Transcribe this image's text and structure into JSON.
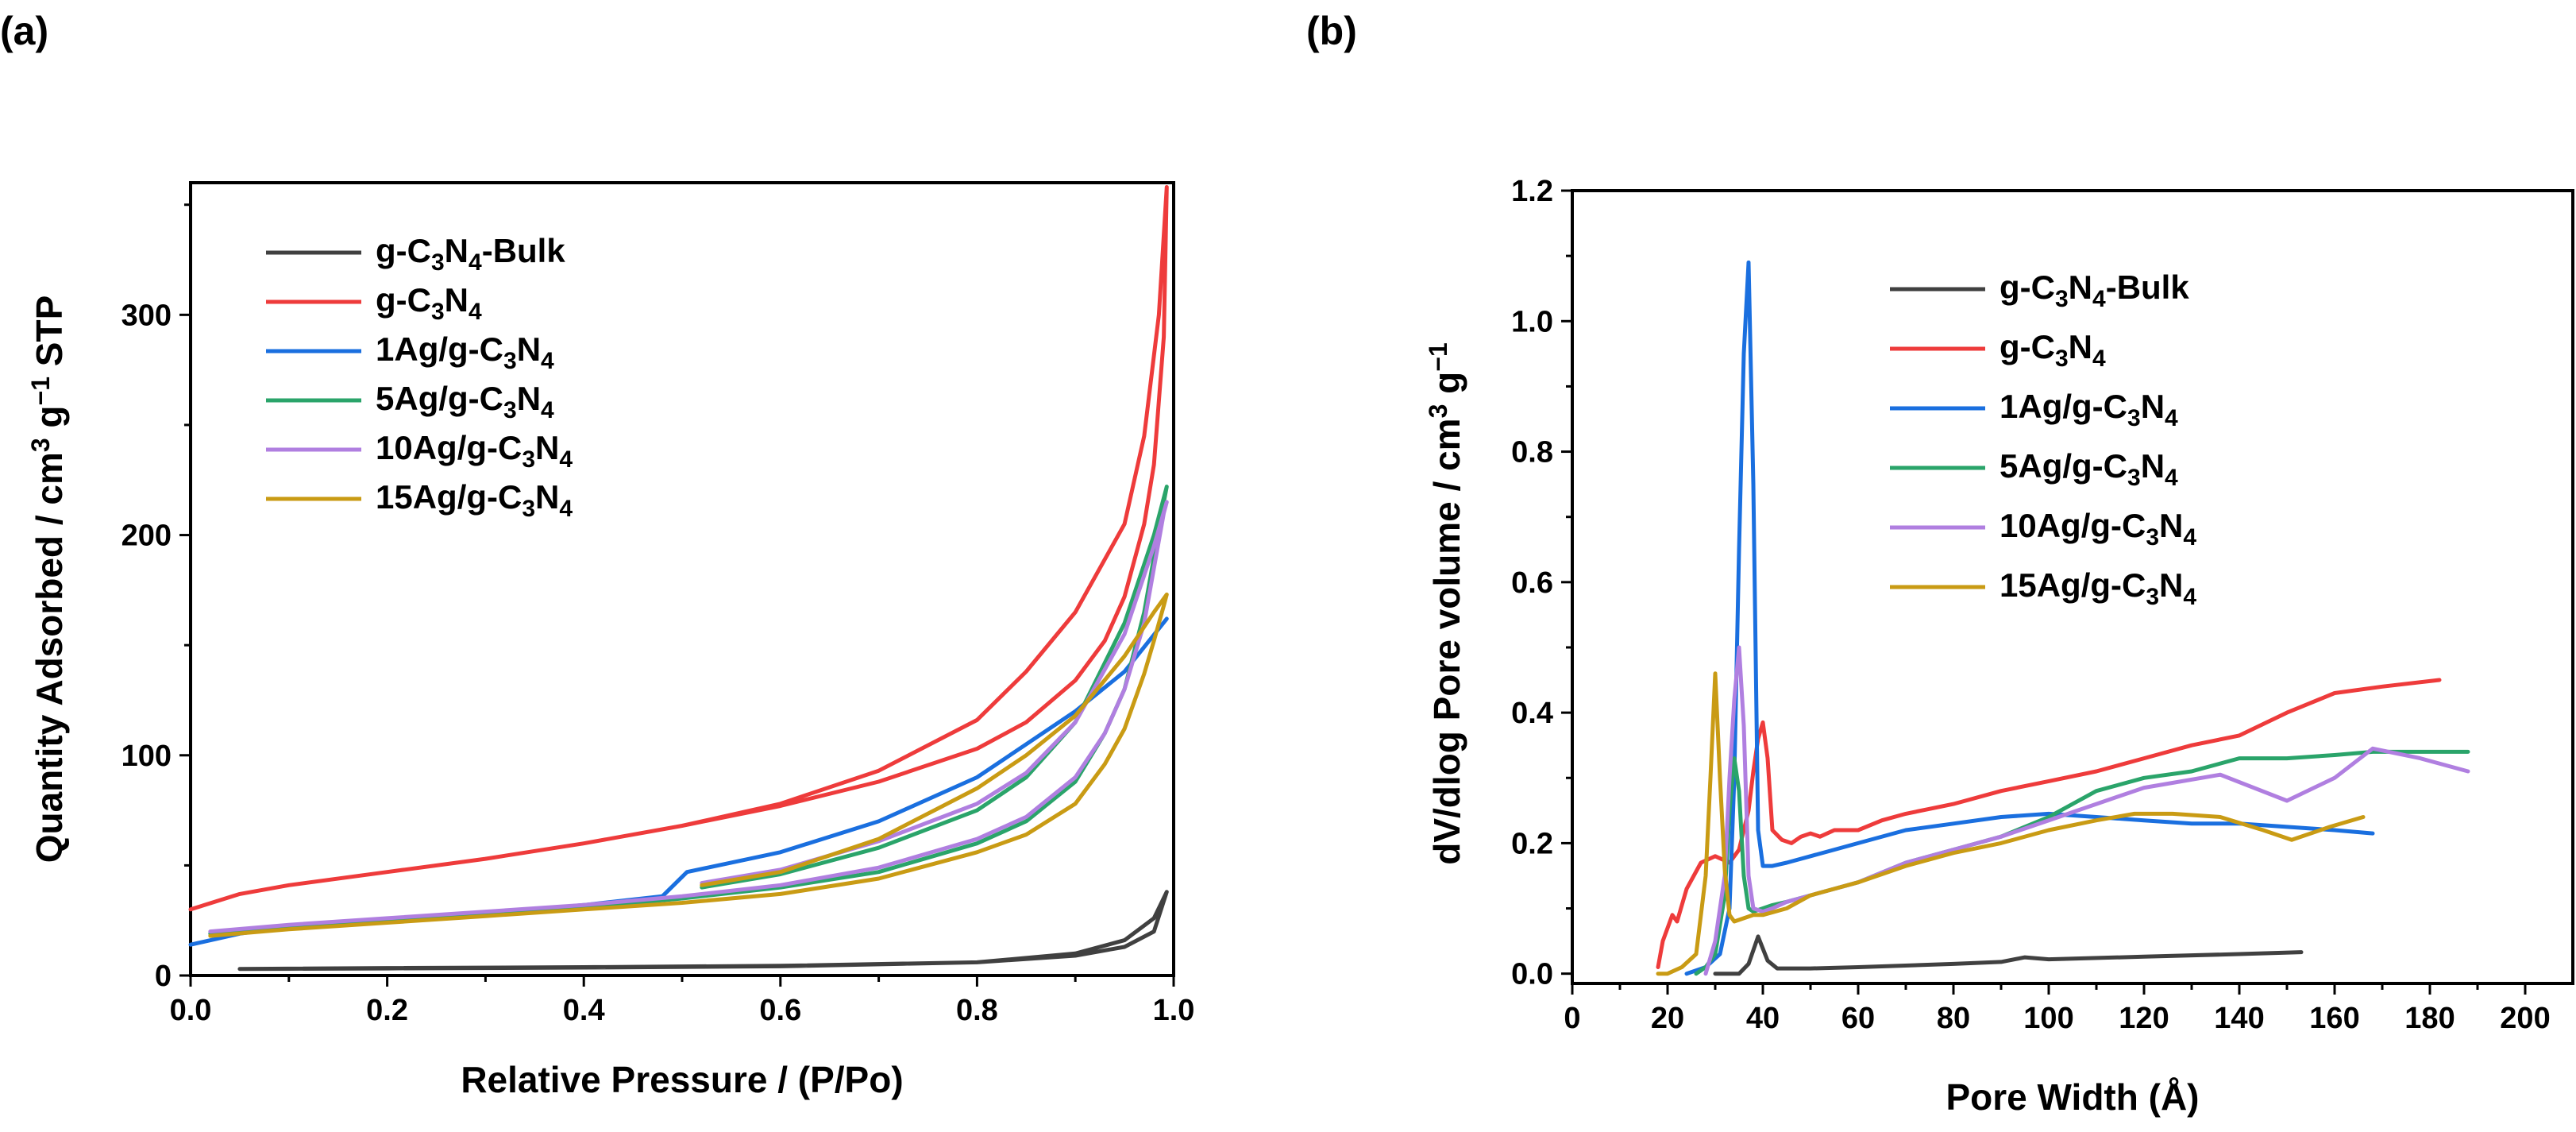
{
  "figure": {
    "panels": [
      "(a)",
      "(b)"
    ]
  },
  "colors": {
    "g-C3N4-Bulk": "#404040",
    "g-C3N4": "#ee3b3b",
    "1Ag/g-C3N4": "#1a6fdf",
    "5Ag/g-C3N4": "#2aa46a",
    "10Ag/g-C3N4": "#b07fe0",
    "15Ag/g-C3N4": "#c99b14"
  },
  "chart_data": [
    {
      "panel": "(a)",
      "type": "line",
      "title": "",
      "xlabel": "Relative Pressure / (P/Po)",
      "ylabel": {
        "pre": "Quantity Adsorbed / cm",
        "sup1": "3",
        "mid": " g",
        "sup2": "−1",
        "post": " STP"
      },
      "xlim": [
        0.0,
        1.0
      ],
      "ylim": [
        0,
        360
      ],
      "xticks": [
        0.0,
        0.2,
        0.4,
        0.6,
        0.8,
        1.0
      ],
      "xtick_labels": [
        "0.0",
        "0.2",
        "0.4",
        "0.6",
        "0.8",
        "1.0"
      ],
      "yticks": [
        0,
        100,
        200,
        300
      ],
      "ytick_labels": [
        "0",
        "100",
        "200",
        "300"
      ],
      "legend_position": "top-left",
      "series": [
        {
          "key": "g-C3N4-Bulk",
          "label": {
            "parts": [
              [
                "t",
                "g-C"
              ],
              [
                "sub",
                "3"
              ],
              [
                "t",
                "N"
              ],
              [
                "sub",
                "4"
              ],
              [
                "t",
                "-Bulk"
              ]
            ]
          },
          "x": [
            0.05,
            0.2,
            0.4,
            0.6,
            0.8,
            0.9,
            0.95,
            0.98,
            0.993,
            0.98,
            0.95,
            0.9,
            0.8,
            0.6,
            0.4,
            0.2,
            0.05
          ],
          "y": [
            3,
            3.2,
            3.6,
            4.2,
            6,
            10,
            16,
            26,
            38,
            20,
            13,
            9,
            6,
            4.4,
            3.8,
            3.4,
            3
          ]
        },
        {
          "key": "g-C3N4",
          "label": {
            "parts": [
              [
                "t",
                "g-C"
              ],
              [
                "sub",
                "3"
              ],
              [
                "t",
                "N"
              ],
              [
                "sub",
                "4"
              ]
            ]
          },
          "x": [
            0.0,
            0.05,
            0.1,
            0.2,
            0.3,
            0.4,
            0.5,
            0.6,
            0.7,
            0.8,
            0.85,
            0.9,
            0.93,
            0.95,
            0.97,
            0.98,
            0.99,
            0.993,
            0.985,
            0.97,
            0.95,
            0.9,
            0.85,
            0.8,
            0.7,
            0.6,
            0.5
          ],
          "y": [
            30,
            37,
            41,
            47,
            53,
            60,
            68,
            77,
            88,
            103,
            115,
            134,
            152,
            172,
            205,
            232,
            290,
            358,
            300,
            245,
            205,
            165,
            138,
            116,
            93,
            78,
            68
          ]
        },
        {
          "key": "1Ag/g-C3N4",
          "label": {
            "parts": [
              [
                "t",
                "1Ag/g-C"
              ],
              [
                "sub",
                "3"
              ],
              [
                "t",
                "N"
              ],
              [
                "sub",
                "4"
              ]
            ]
          },
          "x": [
            0.0,
            0.05,
            0.1,
            0.2,
            0.3,
            0.4,
            0.48,
            0.505,
            0.6,
            0.7,
            0.8,
            0.9,
            0.95,
            0.993
          ],
          "y": [
            14,
            19,
            22,
            25,
            28,
            32,
            36,
            47,
            56,
            70,
            90,
            120,
            138,
            162
          ]
        },
        {
          "key": "5Ag/g-C3N4",
          "label": {
            "parts": [
              [
                "t",
                "5Ag/g-C"
              ],
              [
                "sub",
                "3"
              ],
              [
                "t",
                "N"
              ],
              [
                "sub",
                "4"
              ]
            ]
          },
          "x": [
            0.02,
            0.1,
            0.2,
            0.3,
            0.4,
            0.5,
            0.6,
            0.7,
            0.8,
            0.85,
            0.9,
            0.93,
            0.95,
            0.97,
            0.98,
            0.99,
            0.993,
            0.98,
            0.95,
            0.9,
            0.85,
            0.8,
            0.7,
            0.6,
            0.52
          ],
          "y": [
            19,
            22,
            25,
            28,
            31,
            35,
            40,
            47,
            60,
            70,
            88,
            110,
            130,
            165,
            190,
            215,
            222,
            200,
            160,
            115,
            90,
            75,
            58,
            46,
            40
          ]
        },
        {
          "key": "10Ag/g-C3N4",
          "label": {
            "parts": [
              [
                "t",
                "10Ag/g-C"
              ],
              [
                "sub",
                "3"
              ],
              [
                "t",
                "N"
              ],
              [
                "sub",
                "4"
              ]
            ]
          },
          "x": [
            0.02,
            0.1,
            0.2,
            0.3,
            0.4,
            0.5,
            0.6,
            0.7,
            0.8,
            0.85,
            0.9,
            0.93,
            0.95,
            0.97,
            0.98,
            0.99,
            0.993,
            0.98,
            0.95,
            0.9,
            0.85,
            0.8,
            0.7,
            0.6,
            0.52
          ],
          "y": [
            20,
            23,
            26,
            29,
            32,
            36,
            41,
            49,
            62,
            72,
            90,
            110,
            130,
            160,
            185,
            210,
            215,
            195,
            155,
            115,
            92,
            78,
            61,
            48,
            42
          ]
        },
        {
          "key": "15Ag/g-C3N4",
          "label": {
            "parts": [
              [
                "t",
                "15Ag/g-C"
              ],
              [
                "sub",
                "3"
              ],
              [
                "t",
                "N"
              ],
              [
                "sub",
                "4"
              ]
            ]
          },
          "x": [
            0.02,
            0.1,
            0.2,
            0.3,
            0.4,
            0.5,
            0.6,
            0.7,
            0.8,
            0.85,
            0.9,
            0.93,
            0.95,
            0.97,
            0.98,
            0.99,
            0.993,
            0.98,
            0.95,
            0.9,
            0.85,
            0.8,
            0.7,
            0.6,
            0.52
          ],
          "y": [
            18,
            21,
            24,
            27,
            30,
            33,
            37,
            44,
            56,
            64,
            78,
            96,
            112,
            137,
            152,
            168,
            173,
            165,
            145,
            118,
            100,
            85,
            62,
            47,
            41
          ]
        }
      ]
    },
    {
      "panel": "(b)",
      "type": "line",
      "title": "",
      "xlabel": "Pore Width (Å)",
      "ylabel": {
        "pre": "dV/dlog Pore volume / cm",
        "sup1": "3",
        "mid": " g",
        "sup2": "−1",
        "post": ""
      },
      "xlim": [
        0,
        210
      ],
      "ylim": [
        -0.015,
        1.2
      ],
      "xticks": [
        0,
        20,
        40,
        60,
        80,
        100,
        120,
        140,
        160,
        180,
        200
      ],
      "xtick_labels": [
        "0",
        "20",
        "40",
        "60",
        "80",
        "100",
        "120",
        "140",
        "160",
        "180",
        "200"
      ],
      "yticks": [
        0.0,
        0.2,
        0.4,
        0.6,
        0.8,
        1.0,
        1.2
      ],
      "ytick_labels": [
        "0.0",
        "0.2",
        "0.4",
        "0.6",
        "0.8",
        "1.0",
        "1.2"
      ],
      "legend_position": "top-center",
      "series": [
        {
          "key": "g-C3N4-Bulk",
          "label": {
            "parts": [
              [
                "t",
                "g-C"
              ],
              [
                "sub",
                "3"
              ],
              [
                "t",
                "N"
              ],
              [
                "sub",
                "4"
              ],
              [
                "t",
                "-Bulk"
              ]
            ]
          },
          "x": [
            30,
            35,
            37,
            39,
            41,
            43,
            50,
            60,
            80,
            90,
            95,
            100,
            120,
            140,
            153
          ],
          "y": [
            0.0,
            0.0,
            0.015,
            0.057,
            0.02,
            0.008,
            0.008,
            0.01,
            0.015,
            0.018,
            0.025,
            0.022,
            0.026,
            0.03,
            0.033
          ]
        },
        {
          "key": "g-C3N4",
          "label": {
            "parts": [
              [
                "t",
                "g-C"
              ],
              [
                "sub",
                "3"
              ],
              [
                "t",
                "N"
              ],
              [
                "sub",
                "4"
              ]
            ]
          },
          "x": [
            18,
            19,
            21,
            22,
            24,
            27,
            30,
            33,
            35,
            37,
            38,
            39,
            40,
            41,
            42,
            44,
            46,
            48,
            50,
            52,
            55,
            60,
            65,
            70,
            80,
            90,
            100,
            110,
            120,
            130,
            140,
            150,
            160,
            170,
            182
          ],
          "y": [
            0.01,
            0.05,
            0.09,
            0.08,
            0.13,
            0.17,
            0.18,
            0.17,
            0.19,
            0.25,
            0.31,
            0.36,
            0.385,
            0.33,
            0.22,
            0.205,
            0.2,
            0.21,
            0.215,
            0.21,
            0.22,
            0.22,
            0.235,
            0.245,
            0.26,
            0.28,
            0.295,
            0.31,
            0.33,
            0.35,
            0.365,
            0.4,
            0.43,
            0.44,
            0.45
          ]
        },
        {
          "key": "1Ag/g-C3N4",
          "label": {
            "parts": [
              [
                "t",
                "1Ag/g-C"
              ],
              [
                "sub",
                "3"
              ],
              [
                "t",
                "N"
              ],
              [
                "sub",
                "4"
              ]
            ]
          },
          "x": [
            24,
            28,
            31,
            33,
            34,
            35,
            36,
            37,
            38,
            39,
            40,
            42,
            45,
            50,
            55,
            60,
            70,
            80,
            90,
            100,
            110,
            120,
            130,
            140,
            150,
            160,
            168
          ],
          "y": [
            0.0,
            0.01,
            0.03,
            0.1,
            0.3,
            0.65,
            0.95,
            1.09,
            0.75,
            0.22,
            0.165,
            0.165,
            0.17,
            0.18,
            0.19,
            0.2,
            0.22,
            0.23,
            0.24,
            0.245,
            0.24,
            0.235,
            0.23,
            0.23,
            0.225,
            0.22,
            0.215
          ]
        },
        {
          "key": "5Ag/g-C3N4",
          "label": {
            "parts": [
              [
                "t",
                "5Ag/g-C"
              ],
              [
                "sub",
                "3"
              ],
              [
                "t",
                "N"
              ],
              [
                "sub",
                "4"
              ]
            ]
          },
          "x": [
            26,
            28,
            30,
            32,
            33,
            34,
            35,
            36,
            37,
            38,
            40,
            42,
            45,
            50,
            55,
            60,
            70,
            80,
            90,
            100,
            110,
            120,
            130,
            140,
            150,
            160,
            168,
            178,
            188
          ],
          "y": [
            0.0,
            0.01,
            0.03,
            0.12,
            0.25,
            0.33,
            0.28,
            0.15,
            0.1,
            0.095,
            0.1,
            0.105,
            0.11,
            0.12,
            0.13,
            0.14,
            0.17,
            0.19,
            0.21,
            0.24,
            0.28,
            0.3,
            0.31,
            0.33,
            0.33,
            0.335,
            0.34,
            0.34,
            0.34
          ]
        },
        {
          "key": "10Ag/g-C3N4",
          "label": {
            "parts": [
              [
                "t",
                "10Ag/g-C"
              ],
              [
                "sub",
                "3"
              ],
              [
                "t",
                "N"
              ],
              [
                "sub",
                "4"
              ]
            ]
          },
          "x": [
            28,
            30,
            32,
            33,
            34,
            35,
            36,
            37,
            38,
            40,
            42,
            45,
            50,
            55,
            60,
            70,
            80,
            90,
            100,
            110,
            120,
            136,
            150,
            160,
            168,
            178,
            188
          ],
          "y": [
            0.0,
            0.05,
            0.15,
            0.3,
            0.42,
            0.5,
            0.38,
            0.15,
            0.1,
            0.095,
            0.1,
            0.11,
            0.12,
            0.13,
            0.14,
            0.17,
            0.19,
            0.21,
            0.235,
            0.26,
            0.285,
            0.305,
            0.265,
            0.3,
            0.345,
            0.33,
            0.31
          ]
        },
        {
          "key": "15Ag/g-C3N4",
          "label": {
            "parts": [
              [
                "t",
                "15Ag/g-C"
              ],
              [
                "sub",
                "3"
              ],
              [
                "t",
                "N"
              ],
              [
                "sub",
                "4"
              ]
            ]
          },
          "x": [
            18,
            20,
            23,
            26,
            28,
            29,
            30,
            31,
            32,
            33,
            34,
            36,
            38,
            40,
            45,
            50,
            55,
            60,
            70,
            80,
            90,
            100,
            110,
            118,
            126,
            136,
            145,
            151,
            159,
            166
          ],
          "y": [
            0.0,
            0.0,
            0.01,
            0.03,
            0.15,
            0.3,
            0.46,
            0.3,
            0.16,
            0.09,
            0.08,
            0.085,
            0.09,
            0.09,
            0.1,
            0.12,
            0.13,
            0.14,
            0.165,
            0.185,
            0.2,
            0.22,
            0.235,
            0.245,
            0.245,
            0.24,
            0.22,
            0.205,
            0.225,
            0.24
          ]
        }
      ]
    }
  ]
}
